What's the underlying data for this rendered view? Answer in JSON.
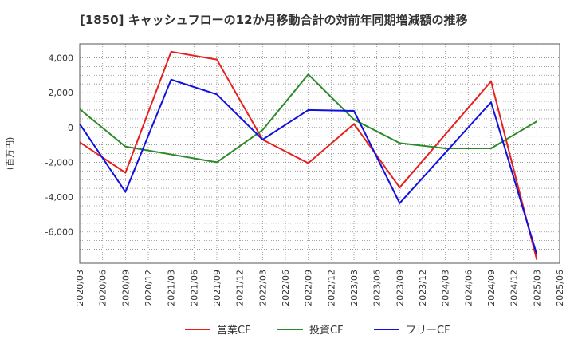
{
  "chart_data": {
    "type": "line",
    "title": "[1850]  キャッシュフローの12か月移動合計の対前年同期増減額の推移",
    "ylabel": "(百万円)",
    "xlabel": "",
    "ylim": [
      -7800,
      4800
    ],
    "yticks": [
      4000,
      2000,
      0,
      -2000,
      -4000,
      -6000
    ],
    "ytick_labels": [
      "4,000",
      "2,000",
      "0",
      "-2,000",
      "-4,000",
      "-6,000"
    ],
    "grid": true,
    "legend_position": "bottom-center",
    "categories": [
      "2020/03",
      "2020/06",
      "2020/09",
      "2020/12",
      "2021/03",
      "2021/06",
      "2021/09",
      "2021/12",
      "2022/03",
      "2022/06",
      "2022/09",
      "2022/12",
      "2023/03",
      "2023/06",
      "2023/09",
      "2023/12",
      "2024/03",
      "2024/06",
      "2024/09",
      "2024/12",
      "2025/03",
      "2025/06"
    ],
    "series": [
      {
        "name": "営業CF",
        "color": "#e8201c",
        "values": [
          -850,
          null,
          -2600,
          null,
          4350,
          null,
          3900,
          null,
          -700,
          null,
          -2050,
          null,
          200,
          null,
          -3450,
          null,
          null,
          null,
          2650,
          null,
          -7600,
          null
        ]
      },
      {
        "name": "投資CF",
        "color": "#2c8a2c",
        "values": [
          1050,
          null,
          -1100,
          null,
          null,
          null,
          -2000,
          null,
          -150,
          null,
          3050,
          null,
          450,
          null,
          -900,
          null,
          -1200,
          null,
          -1200,
          null,
          350,
          null
        ]
      },
      {
        "name": "フリーCF",
        "color": "#1010e0",
        "values": [
          200,
          null,
          -3700,
          null,
          2750,
          null,
          1900,
          null,
          -700,
          null,
          1000,
          null,
          950,
          null,
          -4350,
          null,
          null,
          null,
          1450,
          null,
          -7300,
          null
        ]
      }
    ]
  }
}
